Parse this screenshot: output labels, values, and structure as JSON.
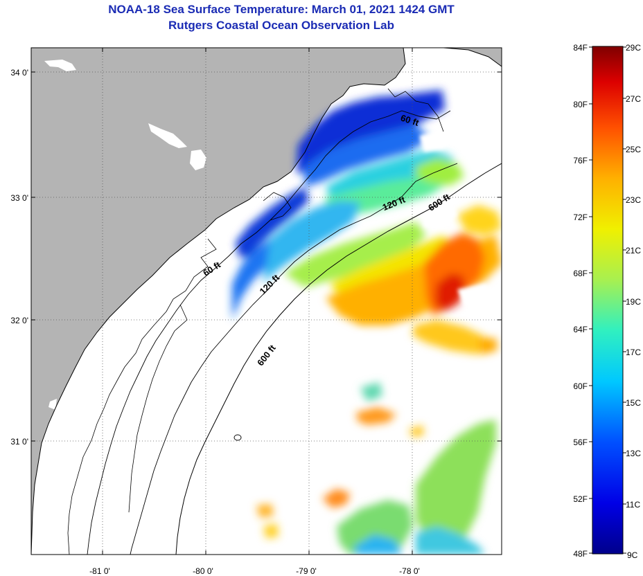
{
  "title": "NOAA-18 Sea Surface Temperature:  March 01, 2021 1424 GMT",
  "subtitle": "Rutgers Coastal Ocean Observation Lab",
  "map": {
    "lon_labels": [
      "-81 0'",
      "-80 0'",
      "-79 0'",
      "-78 0'"
    ],
    "lat_labels": [
      "34 0'",
      "33 0'",
      "32 0'",
      "31 0'"
    ],
    "contour_labels": [
      "60 ft",
      "120 ft",
      "600 ft",
      "60 ft",
      "120 ft",
      "600 ft"
    ]
  },
  "colorbar": {
    "fahrenheit_labels": [
      "84F",
      "80F",
      "76F",
      "72F",
      "68F",
      "64F",
      "60F",
      "56F",
      "52F",
      "48F"
    ],
    "celsius_labels": [
      "29C",
      "27C",
      "25C",
      "23C",
      "21C",
      "19C",
      "17C",
      "15C",
      "13C",
      "11C",
      "9C"
    ]
  },
  "colors": {
    "title": "#1a2bb4",
    "land": "#b4b4b4",
    "ocean_no_data": "#ffffff"
  }
}
